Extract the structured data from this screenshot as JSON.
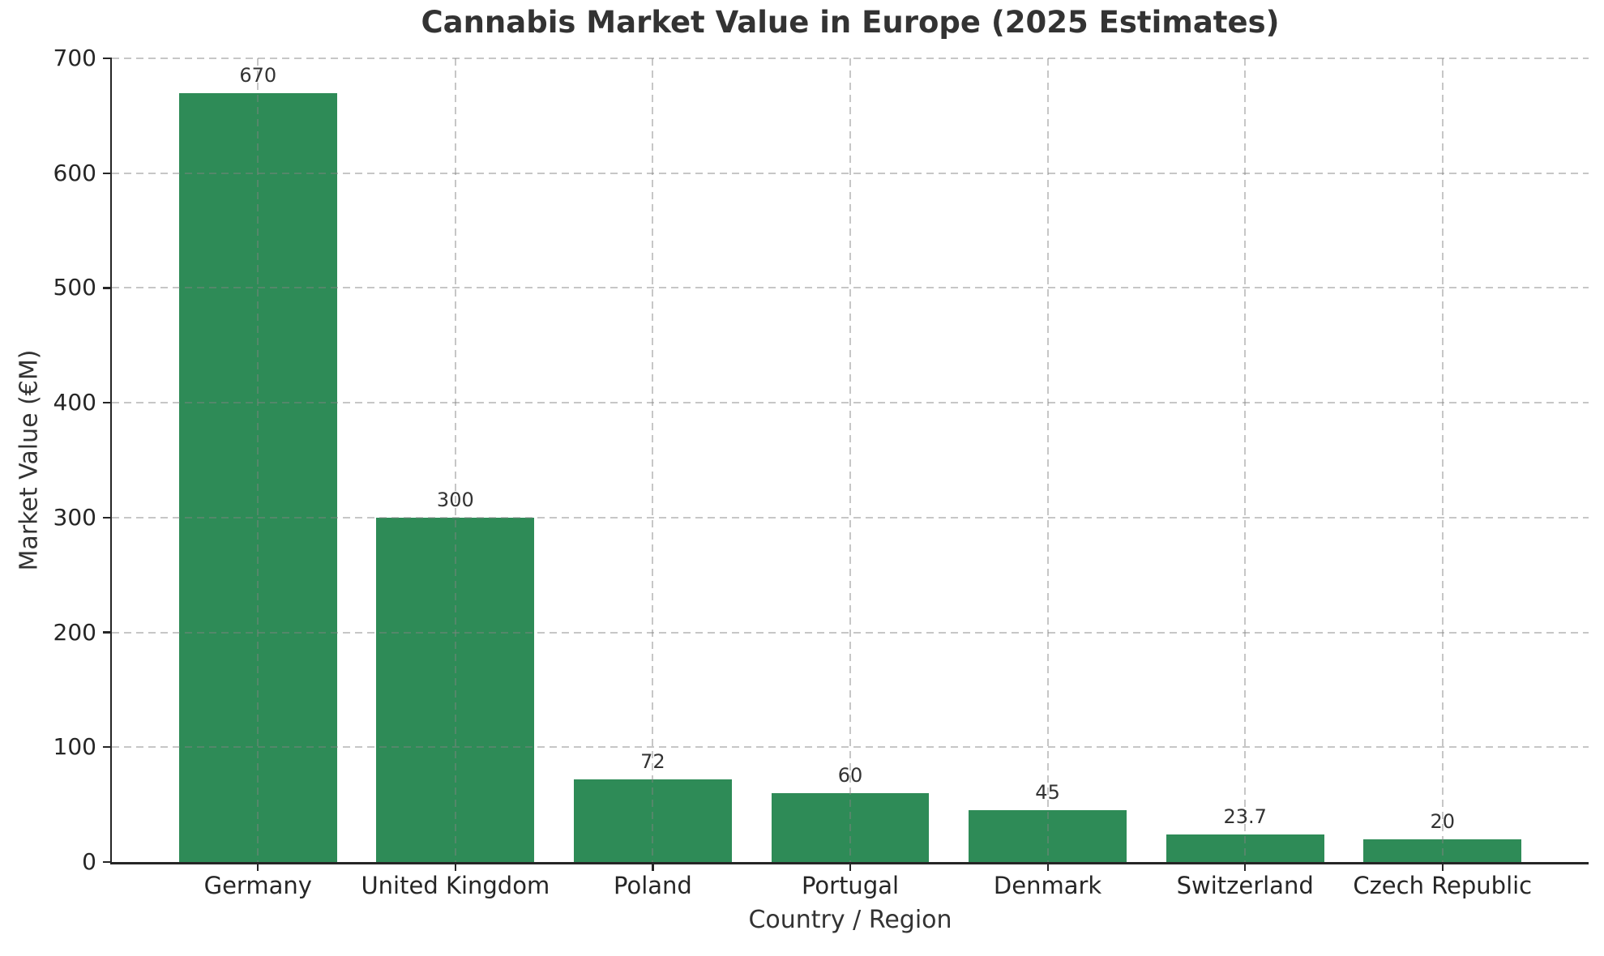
{
  "chart_data": {
    "type": "bar",
    "title": "Cannabis Market Value in Europe (2025 Estimates)",
    "xlabel": "Country / Region",
    "ylabel": "Market Value (€M)",
    "categories": [
      "Germany",
      "United Kingdom",
      "Poland",
      "Portugal",
      "Denmark",
      "Switzerland",
      "Czech Republic"
    ],
    "values": [
      670,
      300,
      72,
      60,
      45,
      23.7,
      20
    ],
    "bar_labels": [
      "670",
      "300",
      "72",
      "60",
      "45",
      "23.7",
      "20"
    ],
    "ylim": [
      0,
      700
    ],
    "yticks": [
      0,
      100,
      200,
      300,
      400,
      500,
      600,
      700
    ],
    "xlim": [
      -0.74,
      6.74
    ],
    "bar_width_units": 0.8,
    "grid": true,
    "grid_style": "dashed",
    "legend": "none",
    "colors": {
      "bar": "#2e8b57",
      "grid": "#c9c9c9",
      "spine": "#262626",
      "title_text": "#333333",
      "tick_text": "#262626"
    }
  }
}
